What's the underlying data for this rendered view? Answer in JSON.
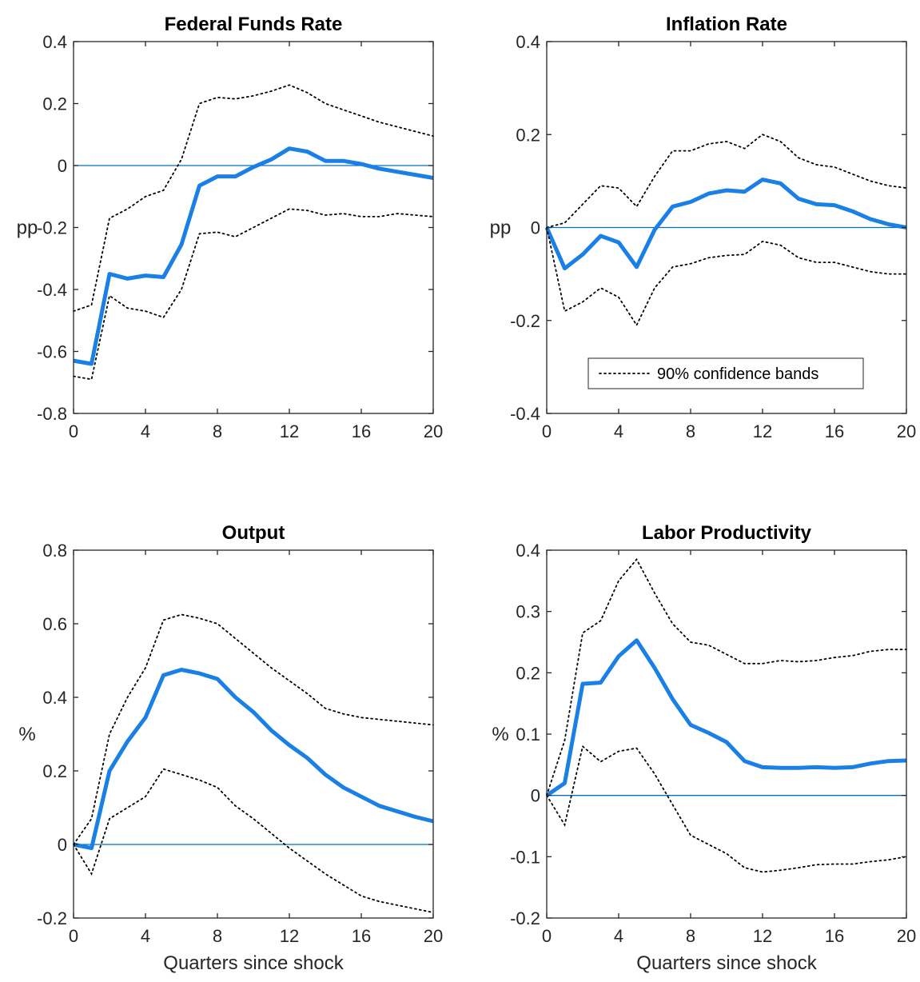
{
  "style": {
    "irf_color": "#1a80e6",
    "zero_line_color": "#0072bd",
    "band_color": "#000000",
    "axis_color": "#262626"
  },
  "chart_data": [
    {
      "type": "line",
      "title": "Federal Funds Rate",
      "xlabel": "",
      "ylabel": "pp",
      "xlim": [
        0,
        20
      ],
      "ylim": [
        -0.8,
        0.4
      ],
      "xticks": [
        "0",
        "4",
        "8",
        "12",
        "16",
        "20"
      ],
      "yticks": [
        "-0.8",
        "-0.6",
        "-0.4",
        "-0.2",
        "0",
        "0.2",
        "0.4"
      ],
      "x": [
        0,
        1,
        2,
        3,
        4,
        5,
        6,
        7,
        8,
        9,
        10,
        11,
        12,
        13,
        14,
        15,
        16,
        17,
        18,
        19,
        20
      ],
      "series": [
        {
          "role": "irf",
          "values": [
            -0.63,
            -0.64,
            -0.35,
            -0.365,
            -0.355,
            -0.36,
            -0.255,
            -0.065,
            -0.035,
            -0.035,
            -0.005,
            0.02,
            0.055,
            0.045,
            0.015,
            0.015,
            0.005,
            -0.01,
            -0.02,
            -0.03,
            -0.04
          ]
        },
        {
          "role": "upper",
          "values": [
            -0.47,
            -0.45,
            -0.17,
            -0.14,
            -0.1,
            -0.08,
            0.02,
            0.2,
            0.22,
            0.215,
            0.225,
            0.24,
            0.26,
            0.235,
            0.2,
            0.18,
            0.16,
            0.14,
            0.125,
            0.11,
            0.095
          ]
        },
        {
          "role": "lower",
          "values": [
            -0.68,
            -0.69,
            -0.42,
            -0.46,
            -0.47,
            -0.49,
            -0.4,
            -0.22,
            -0.215,
            -0.23,
            -0.2,
            -0.17,
            -0.14,
            -0.145,
            -0.16,
            -0.155,
            -0.165,
            -0.165,
            -0.155,
            -0.16,
            -0.165
          ]
        }
      ],
      "legend": null
    },
    {
      "type": "line",
      "title": "Inflation Rate",
      "xlabel": "",
      "ylabel": "pp",
      "xlim": [
        0,
        20
      ],
      "ylim": [
        -0.4,
        0.4
      ],
      "xticks": [
        "0",
        "4",
        "8",
        "12",
        "16",
        "20"
      ],
      "yticks": [
        "-0.4",
        "-0.2",
        "0",
        "0.2",
        "0.4"
      ],
      "x": [
        0,
        1,
        2,
        3,
        4,
        5,
        6,
        7,
        8,
        9,
        10,
        11,
        12,
        13,
        14,
        15,
        16,
        17,
        18,
        19,
        20
      ],
      "series": [
        {
          "role": "irf",
          "values": [
            0,
            -0.088,
            -0.058,
            -0.018,
            -0.032,
            -0.085,
            -0.005,
            0.045,
            0.055,
            0.073,
            0.08,
            0.077,
            0.103,
            0.095,
            0.062,
            0.05,
            0.048,
            0.035,
            0.018,
            0.007,
            0.0
          ]
        },
        {
          "role": "upper",
          "values": [
            0,
            0.01,
            0.05,
            0.09,
            0.085,
            0.045,
            0.11,
            0.165,
            0.165,
            0.18,
            0.185,
            0.17,
            0.2,
            0.185,
            0.15,
            0.135,
            0.13,
            0.115,
            0.1,
            0.09,
            0.085
          ]
        },
        {
          "role": "lower",
          "values": [
            0,
            -0.18,
            -0.16,
            -0.13,
            -0.15,
            -0.21,
            -0.13,
            -0.085,
            -0.078,
            -0.065,
            -0.06,
            -0.058,
            -0.03,
            -0.038,
            -0.065,
            -0.075,
            -0.075,
            -0.085,
            -0.095,
            -0.1,
            -0.1
          ]
        }
      ],
      "legend": {
        "placement": "bottom-center",
        "label": "90% confidence bands"
      }
    },
    {
      "type": "line",
      "title": "Output",
      "xlabel": "Quarters since shock",
      "ylabel": "%",
      "xlim": [
        0,
        20
      ],
      "ylim": [
        -0.2,
        0.8
      ],
      "xticks": [
        "0",
        "4",
        "8",
        "12",
        "16",
        "20"
      ],
      "yticks": [
        "-0.2",
        "0",
        "0.2",
        "0.4",
        "0.6",
        "0.8"
      ],
      "x": [
        0,
        1,
        2,
        3,
        4,
        5,
        6,
        7,
        8,
        9,
        10,
        11,
        12,
        13,
        14,
        15,
        16,
        17,
        18,
        19,
        20
      ],
      "series": [
        {
          "role": "irf",
          "values": [
            0,
            -0.01,
            0.2,
            0.28,
            0.345,
            0.46,
            0.475,
            0.465,
            0.45,
            0.4,
            0.36,
            0.31,
            0.27,
            0.235,
            0.19,
            0.155,
            0.13,
            0.105,
            0.09,
            0.075,
            0.063
          ]
        },
        {
          "role": "upper",
          "values": [
            0,
            0.07,
            0.3,
            0.4,
            0.48,
            0.61,
            0.625,
            0.615,
            0.6,
            0.56,
            0.52,
            0.48,
            0.445,
            0.41,
            0.37,
            0.355,
            0.345,
            0.34,
            0.335,
            0.33,
            0.325
          ]
        },
        {
          "role": "lower",
          "values": [
            0,
            -0.08,
            0.07,
            0.1,
            0.13,
            0.205,
            0.19,
            0.175,
            0.155,
            0.105,
            0.07,
            0.03,
            -0.01,
            -0.045,
            -0.08,
            -0.11,
            -0.14,
            -0.155,
            -0.165,
            -0.175,
            -0.185
          ]
        }
      ],
      "legend": null
    },
    {
      "type": "line",
      "title": "Labor Productivity",
      "xlabel": "Quarters since shock",
      "ylabel": "%",
      "xlim": [
        0,
        20
      ],
      "ylim": [
        -0.2,
        0.4
      ],
      "xticks": [
        "0",
        "4",
        "8",
        "12",
        "16",
        "20"
      ],
      "yticks": [
        "-0.2",
        "-0.1",
        "0",
        "0.1",
        "0.2",
        "0.3",
        "0.4"
      ],
      "x": [
        0,
        1,
        2,
        3,
        4,
        5,
        6,
        7,
        8,
        9,
        10,
        11,
        12,
        13,
        14,
        15,
        16,
        17,
        18,
        19,
        20
      ],
      "series": [
        {
          "role": "irf",
          "values": [
            0,
            0.02,
            0.182,
            0.184,
            0.227,
            0.253,
            0.208,
            0.157,
            0.115,
            0.102,
            0.087,
            0.056,
            0.046,
            0.045,
            0.045,
            0.046,
            0.045,
            0.046,
            0.052,
            0.056,
            0.057
          ]
        },
        {
          "role": "upper",
          "values": [
            0,
            0.09,
            0.265,
            0.285,
            0.35,
            0.385,
            0.33,
            0.28,
            0.25,
            0.245,
            0.23,
            0.215,
            0.215,
            0.22,
            0.218,
            0.22,
            0.225,
            0.228,
            0.235,
            0.238,
            0.238
          ]
        },
        {
          "role": "lower",
          "values": [
            0,
            -0.048,
            0.08,
            0.055,
            0.072,
            0.077,
            0.035,
            -0.015,
            -0.065,
            -0.08,
            -0.095,
            -0.118,
            -0.125,
            -0.122,
            -0.118,
            -0.113,
            -0.112,
            -0.112,
            -0.108,
            -0.105,
            -0.1
          ]
        }
      ],
      "legend": null
    }
  ]
}
